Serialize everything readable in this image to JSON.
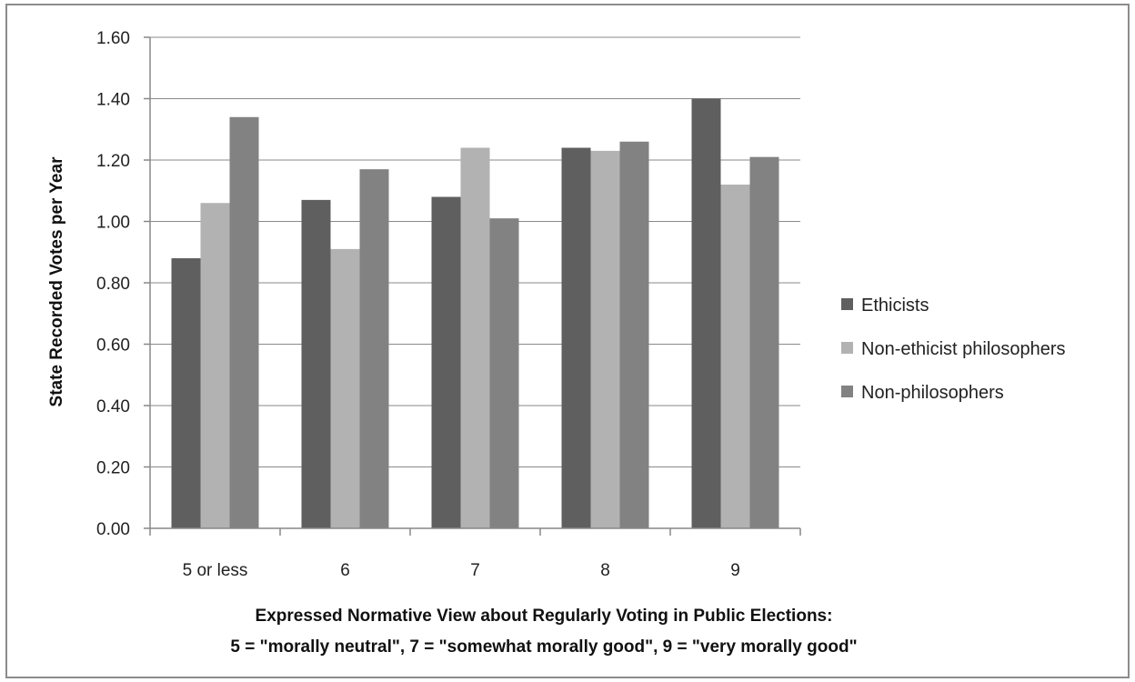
{
  "chart_data": {
    "type": "bar",
    "categories": [
      "5 or less",
      "6",
      "7",
      "8",
      "9"
    ],
    "series": [
      {
        "name": "Ethicists",
        "values": [
          0.88,
          1.07,
          1.08,
          1.24,
          1.4
        ],
        "color": "#5f5f5f"
      },
      {
        "name": "Non-ethicist philosophers",
        "values": [
          1.06,
          0.91,
          1.24,
          1.23,
          1.12
        ],
        "color": "#b2b2b2"
      },
      {
        "name": "Non-philosophers",
        "values": [
          1.34,
          1.17,
          1.01,
          1.26,
          1.21
        ],
        "color": "#828282"
      }
    ],
    "ylim": [
      0,
      1.6
    ],
    "yticks": [
      "0.00",
      "0.20",
      "0.40",
      "0.60",
      "0.80",
      "1.00",
      "1.20",
      "1.40",
      "1.60"
    ],
    "ylabel": "State Recorded Votes per Year",
    "xlabel_line1": "Expressed Normative View about Regularly Voting in Public Elections:",
    "xlabel_line2": "5 = \"morally neutral\", 7 = \"somewhat morally good\", 9 = \"very morally good\"",
    "grid": true,
    "legend_position": "right"
  }
}
